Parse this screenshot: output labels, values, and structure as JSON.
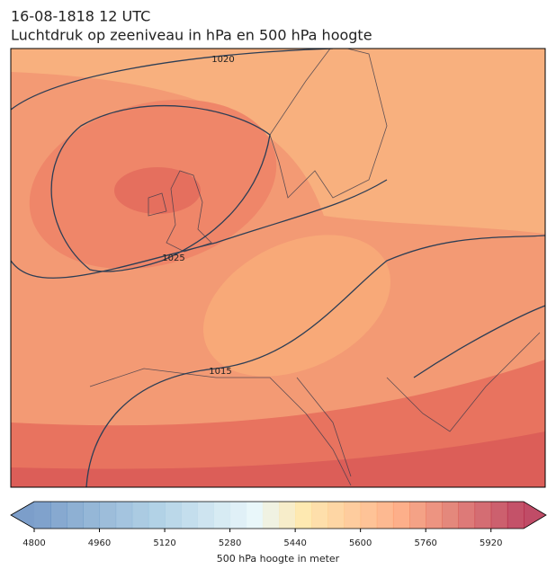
{
  "header": {
    "title_line1": "16-08-1818 12 UTC",
    "title_line2": "Luchtdruk op zeeniveau in hPa en 500 hPa hoogte"
  },
  "map": {
    "contour_labels": [
      "1020",
      "1025",
      "1015"
    ]
  },
  "colorbar": {
    "label": "500 hPa hoogte in meter",
    "range": [
      4800,
      6000
    ],
    "step": 40,
    "ticks": [
      4800,
      4960,
      5120,
      5280,
      5440,
      5600,
      5760,
      5920
    ]
  }
}
